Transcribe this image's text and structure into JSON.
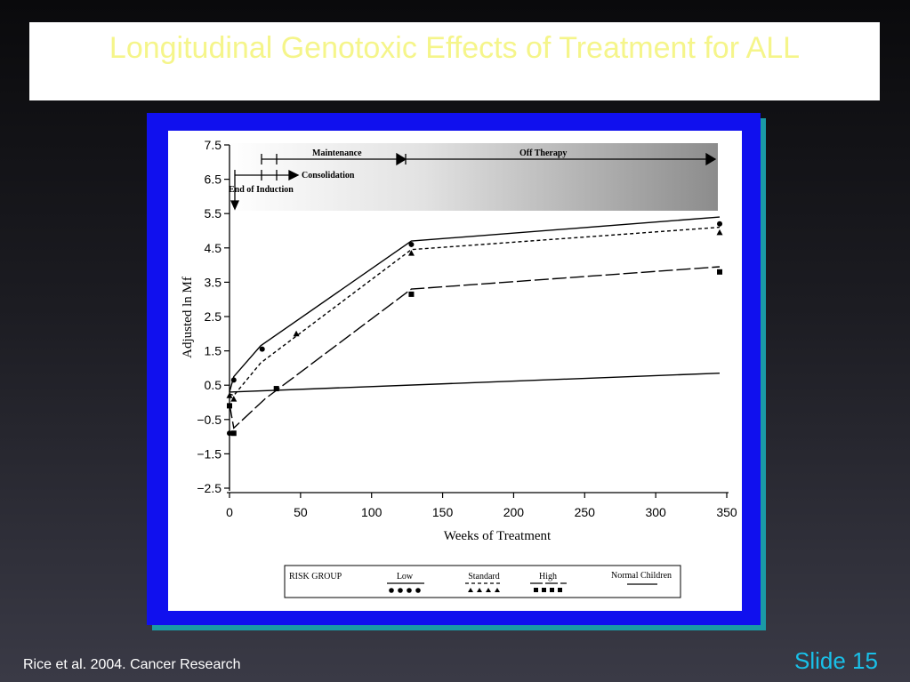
{
  "slide": {
    "title": "Longitudinal Genotoxic Effects of Treatment for ALL",
    "citation": "Rice et al. 2004. Cancer Research",
    "slide_number": "Slide 15"
  },
  "colors": {
    "title_text": "#f5f58a",
    "slide_number": "#19c0e8",
    "frame": "#1010ee",
    "frame_shadow": "#1a9aa6"
  },
  "chart_data": {
    "type": "line",
    "xlabel": "Weeks of Treatment",
    "ylabel": "Adjusted ln Mf",
    "xlim": [
      0,
      350
    ],
    "ylim": [
      -2.5,
      7.5
    ],
    "x_ticks": [
      0,
      50,
      100,
      150,
      200,
      250,
      300,
      350
    ],
    "y_ticks": [
      -2.5,
      -1.5,
      -0.5,
      0.5,
      1.5,
      2.5,
      3.5,
      4.5,
      5.5,
      6.5,
      7.5
    ],
    "x_tick_labels": [
      "0",
      "50",
      "100",
      "150",
      "200",
      "250",
      "300",
      "350"
    ],
    "y_tick_labels": [
      "−2.5",
      "−1.5",
      "−0.5",
      "0.5",
      "1.5",
      "2.5",
      "3.5",
      "4.5",
      "5.5",
      "6.5",
      "7.5"
    ],
    "grid": false,
    "legend": {
      "title": "RISK GROUP",
      "placement": "bottom",
      "labels": [
        "Low",
        "Standard",
        "High",
        "Normal Children"
      ]
    },
    "phases": [
      {
        "label": "Maintenance"
      },
      {
        "label": "Off Therapy"
      },
      {
        "label": "Consolidation"
      },
      {
        "label": "End of Induction"
      }
    ],
    "series": [
      {
        "name": "Low",
        "marker": "circle",
        "line": "solid",
        "line_x": [
          0,
          3,
          22,
          128,
          345
        ],
        "line_y": [
          0.3,
          0.75,
          1.65,
          4.7,
          5.4
        ],
        "points_x": [
          0,
          3,
          23,
          128,
          345
        ],
        "points_y": [
          -0.9,
          0.65,
          1.55,
          4.6,
          5.2
        ]
      },
      {
        "name": "Standard",
        "marker": "triangle",
        "line": "dashed",
        "line_x": [
          0,
          3,
          22,
          128,
          345
        ],
        "line_y": [
          0.25,
          0.2,
          1.15,
          4.45,
          5.1
        ],
        "points_x": [
          0,
          3,
          47,
          128,
          345
        ],
        "points_y": [
          0.2,
          0.1,
          2.0,
          4.35,
          4.95
        ]
      },
      {
        "name": "High",
        "marker": "square",
        "line": "longdash",
        "line_x": [
          0,
          3,
          25,
          128,
          345
        ],
        "line_y": [
          -0.05,
          -0.75,
          0.1,
          3.3,
          3.95
        ],
        "points_x": [
          0,
          3,
          33,
          128,
          345
        ],
        "points_y": [
          -0.1,
          -0.9,
          0.4,
          3.15,
          3.8
        ]
      },
      {
        "name": "Normal Children",
        "marker": "none",
        "line": "solid",
        "line_x": [
          0,
          345
        ],
        "line_y": [
          0.3,
          0.85
        ],
        "points_x": [],
        "points_y": []
      }
    ]
  }
}
